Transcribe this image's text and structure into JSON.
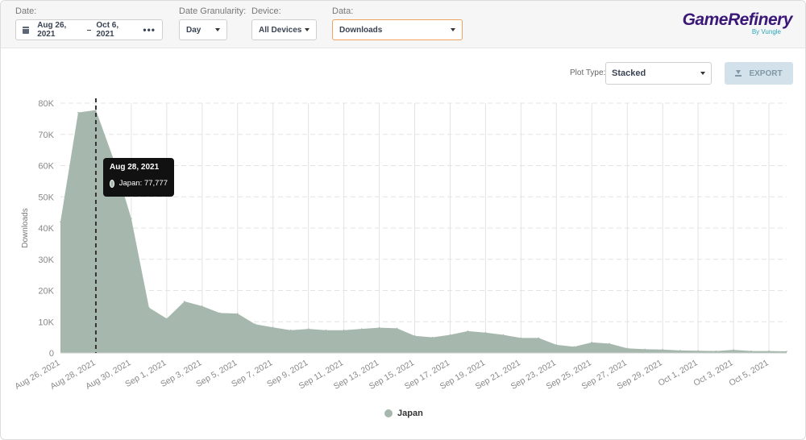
{
  "filters": {
    "date": {
      "label": "Date:",
      "start": "Aug 26, 2021",
      "separator": "–",
      "end": "Oct 6, 2021",
      "more": "•••"
    },
    "granularity": {
      "label": "Date Granularity:",
      "value": "Day"
    },
    "device": {
      "label": "Device:",
      "value": "All Devices"
    },
    "data": {
      "label": "Data:",
      "value": "Downloads"
    }
  },
  "brand": {
    "name": "GameRefinery",
    "sub": "By Vungle"
  },
  "toolbar": {
    "plot_type_label": "Plot Type:",
    "plot_type_value": "Stacked",
    "export_label": "EXPORT"
  },
  "tooltip": {
    "date": "Aug 28, 2021",
    "series": "Japan",
    "value": "77,777"
  },
  "colors": {
    "area": "#a6b8ad",
    "grid": "#e3e3e3",
    "crosshair": "#333333",
    "accent_border": "#f0a35e",
    "brand": "#3b1877"
  },
  "chart_data": {
    "type": "area",
    "ylabel": "Downloads",
    "ylim": [
      0,
      80000
    ],
    "yticks": [
      0,
      10000,
      20000,
      30000,
      40000,
      50000,
      60000,
      70000,
      80000
    ],
    "ytick_labels": [
      "0",
      "10K",
      "20K",
      "30K",
      "40K",
      "50K",
      "60K",
      "70K",
      "80K"
    ],
    "x": [
      "Aug 26, 2021",
      "Aug 27, 2021",
      "Aug 28, 2021",
      "Aug 29, 2021",
      "Aug 30, 2021",
      "Aug 31, 2021",
      "Sep 1, 2021",
      "Sep 2, 2021",
      "Sep 3, 2021",
      "Sep 4, 2021",
      "Sep 5, 2021",
      "Sep 6, 2021",
      "Sep 7, 2021",
      "Sep 8, 2021",
      "Sep 9, 2021",
      "Sep 10, 2021",
      "Sep 11, 2021",
      "Sep 12, 2021",
      "Sep 13, 2021",
      "Sep 14, 2021",
      "Sep 15, 2021",
      "Sep 16, 2021",
      "Sep 17, 2021",
      "Sep 18, 2021",
      "Sep 19, 2021",
      "Sep 20, 2021",
      "Sep 21, 2021",
      "Sep 22, 2021",
      "Sep 23, 2021",
      "Sep 24, 2021",
      "Sep 25, 2021",
      "Sep 26, 2021",
      "Sep 27, 2021",
      "Sep 28, 2021",
      "Sep 29, 2021",
      "Sep 30, 2021",
      "Oct 1, 2021",
      "Oct 2, 2021",
      "Oct 3, 2021",
      "Oct 4, 2021",
      "Oct 5, 2021",
      "Oct 6, 2021"
    ],
    "xtick_labels": [
      "Aug 26, 2021",
      "Aug 28, 2021",
      "Aug 30, 2021",
      "Sep 1, 2021",
      "Sep 3, 2021",
      "Sep 5, 2021",
      "Sep 7, 2021",
      "Sep 9, 2021",
      "Sep 11, 2021",
      "Sep 13, 2021",
      "Sep 15, 2021",
      "Sep 17, 2021",
      "Sep 19, 2021",
      "Sep 21, 2021",
      "Sep 23, 2021",
      "Sep 25, 2021",
      "Sep 27, 2021",
      "Sep 29, 2021",
      "Oct 1, 2021",
      "Oct 3, 2021",
      "Oct 5, 2021"
    ],
    "highlight": "Aug 28, 2021",
    "series": [
      {
        "name": "Japan",
        "values": [
          42000,
          77000,
          77777,
          62000,
          43000,
          14500,
          11000,
          16500,
          15000,
          12800,
          12600,
          9200,
          8200,
          7300,
          7700,
          7300,
          7300,
          7700,
          8100,
          7900,
          5500,
          5000,
          5800,
          7000,
          6500,
          5800,
          4800,
          4800,
          2600,
          2000,
          3400,
          3000,
          1500,
          1200,
          1100,
          800,
          700,
          600,
          1000,
          600,
          600,
          500
        ]
      }
    ],
    "grid": true,
    "legend": "bottom-center"
  }
}
